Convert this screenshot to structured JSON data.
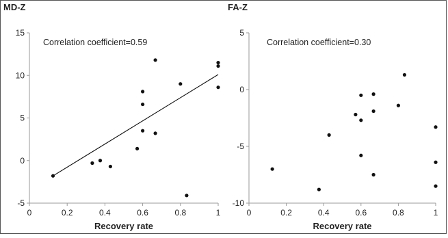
{
  "chart_data": [
    {
      "type": "scatter",
      "title": "MD-Z",
      "annotation": "Correlation coefficient=0.59",
      "xlabel": "Recovery rate",
      "ylabel": "",
      "xlim": [
        0,
        1
      ],
      "ylim": [
        -5,
        15
      ],
      "x_ticks": [
        "0",
        "0.2",
        "0.4",
        "0.6",
        "0.8",
        "1"
      ],
      "y_ticks": [
        "-5",
        "0",
        "5",
        "10",
        "15"
      ],
      "grid": false,
      "points": [
        {
          "x": 0.125,
          "y": -1.8
        },
        {
          "x": 0.333,
          "y": -0.3
        },
        {
          "x": 0.375,
          "y": 0.0
        },
        {
          "x": 0.429,
          "y": -0.7
        },
        {
          "x": 0.571,
          "y": 1.4
        },
        {
          "x": 0.6,
          "y": 3.5
        },
        {
          "x": 0.6,
          "y": 6.6
        },
        {
          "x": 0.6,
          "y": 8.1
        },
        {
          "x": 0.667,
          "y": 3.2
        },
        {
          "x": 0.667,
          "y": 11.8
        },
        {
          "x": 0.8,
          "y": 9.0
        },
        {
          "x": 0.833,
          "y": -4.1
        },
        {
          "x": 1.0,
          "y": 11.5
        },
        {
          "x": 1.0,
          "y": 11.1
        },
        {
          "x": 1.0,
          "y": 8.6
        }
      ],
      "trendline": {
        "x": [
          0.125,
          1.0
        ],
        "y": [
          -1.8,
          10.1
        ]
      }
    },
    {
      "type": "scatter",
      "title": "FA-Z",
      "annotation": "Correlation coefficient=0.30",
      "xlabel": "Recovery rate",
      "ylabel": "",
      "xlim": [
        0,
        1
      ],
      "ylim": [
        -10,
        5
      ],
      "x_ticks": [
        "0",
        "0.2",
        "0.4",
        "0.6",
        "0.8",
        "1"
      ],
      "y_ticks": [
        "-10",
        "-5",
        "0",
        "5"
      ],
      "grid": false,
      "points": [
        {
          "x": 0.125,
          "y": -7.0
        },
        {
          "x": 0.375,
          "y": -8.8
        },
        {
          "x": 0.429,
          "y": -4.0
        },
        {
          "x": 0.571,
          "y": -2.2
        },
        {
          "x": 0.6,
          "y": -0.5
        },
        {
          "x": 0.6,
          "y": -2.7
        },
        {
          "x": 0.6,
          "y": -5.8
        },
        {
          "x": 0.667,
          "y": -0.4
        },
        {
          "x": 0.667,
          "y": -1.9
        },
        {
          "x": 0.667,
          "y": -7.5
        },
        {
          "x": 0.8,
          "y": -1.4
        },
        {
          "x": 0.833,
          "y": 1.3
        },
        {
          "x": 1.0,
          "y": -3.3
        },
        {
          "x": 1.0,
          "y": -6.4
        },
        {
          "x": 1.0,
          "y": -8.5
        }
      ]
    }
  ],
  "colors": {
    "points": "#111111",
    "axes": "#9a9a9a",
    "trendline": "#111111",
    "text": "#222222"
  }
}
